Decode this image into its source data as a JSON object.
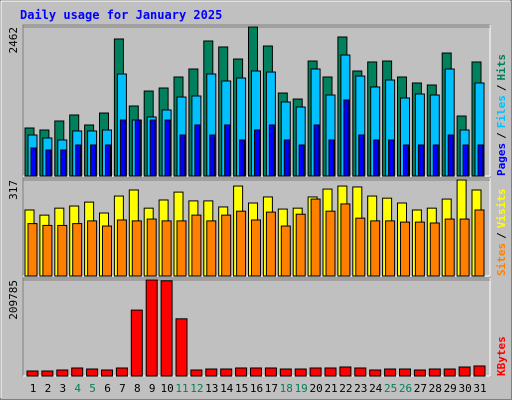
{
  "chart_data": [
    {
      "type": "bar",
      "title": "Daily usage for January 2025",
      "series": [
        {
          "name": "Hits",
          "color": "#00805c",
          "values": [
            793,
            760,
            909,
            1008,
            843,
            1041,
            2264,
            1157,
            1404,
            1454,
            1636,
            1768,
            2231,
            2132,
            1933,
            2462,
            2148,
            1371,
            1272,
            1900,
            1636,
            2297,
            1735,
            1884,
            1900,
            1636,
            1537,
            1504,
            2032,
            991,
            1884
          ]
        },
        {
          "name": "Files",
          "color": "#00c0ff",
          "values": [
            677,
            628,
            595,
            744,
            744,
            760,
            1685,
            925,
            975,
            1091,
            1305,
            1322,
            1685,
            1570,
            1619,
            1735,
            1718,
            1223,
            1140,
            1768,
            1338,
            1999,
            1652,
            1471,
            1586,
            1289,
            1355,
            1338,
            1768,
            760,
            1537
          ]
        },
        {
          "name": "Pages",
          "color": "#0000ff",
          "values": [
            463,
            430,
            430,
            512,
            512,
            512,
            925,
            925,
            925,
            925,
            677,
            843,
            677,
            843,
            595,
            760,
            843,
            595,
            512,
            843,
            595,
            1256,
            677,
            595,
            595,
            512,
            512,
            512,
            677,
            512,
            512
          ]
        }
      ],
      "separator": "/",
      "ylim": [
        0,
        2462
      ],
      "yticks": [
        2462
      ]
    },
    {
      "type": "bar",
      "series": [
        {
          "name": "Visits",
          "color": "#ffff00",
          "values": [
            218,
            201,
            224,
            231,
            244,
            208,
            264,
            284,
            224,
            251,
            277,
            248,
            248,
            228,
            297,
            241,
            261,
            221,
            224,
            261,
            287,
            297,
            294,
            264,
            257,
            241,
            218,
            224,
            254,
            317,
            284
          ]
        },
        {
          "name": "Sites",
          "color": "#ff8000",
          "values": [
            173,
            167,
            167,
            173,
            182,
            165,
            185,
            182,
            188,
            182,
            182,
            201,
            182,
            201,
            214,
            185,
            211,
            165,
            204,
            254,
            214,
            238,
            191,
            182,
            182,
            178,
            178,
            175,
            188,
            188,
            218
          ]
        }
      ],
      "separator": "/",
      "ylim": [
        0,
        317
      ],
      "yticks": [
        317
      ]
    },
    {
      "type": "bar",
      "categories": [
        "1",
        "2",
        "3",
        "4",
        "5",
        "6",
        "7",
        "8",
        "9",
        "10",
        "11",
        "12",
        "13",
        "14",
        "15",
        "16",
        "17",
        "18",
        "19",
        "20",
        "21",
        "22",
        "23",
        "24",
        "25",
        "26",
        "27",
        "28",
        "29",
        "30",
        "31"
      ],
      "category_colors": [
        "#000000",
        "#000000",
        "#000000",
        "#00805c",
        "#00805c",
        "#000000",
        "#000000",
        "#000000",
        "#000000",
        "#000000",
        "#00805c",
        "#00805c",
        "#000000",
        "#000000",
        "#000000",
        "#000000",
        "#000000",
        "#00805c",
        "#00805c",
        "#000000",
        "#000000",
        "#000000",
        "#000000",
        "#000000",
        "#00805c",
        "#00805c",
        "#000000",
        "#000000",
        "#000000",
        "#000000",
        "#000000"
      ],
      "series": [
        {
          "name": "KBytes",
          "color": "#ff0000",
          "values": [
            10900,
            10900,
            13100,
            17500,
            15300,
            13100,
            17500,
            144000,
            209785,
            208000,
            125000,
            13100,
            15300,
            15300,
            17500,
            17500,
            17500,
            15300,
            15300,
            17500,
            17500,
            19700,
            17500,
            13100,
            15300,
            15300,
            13100,
            15300,
            15300,
            19700,
            21900
          ]
        }
      ],
      "ylim": [
        0,
        209785
      ],
      "yticks": [
        209785
      ]
    }
  ]
}
